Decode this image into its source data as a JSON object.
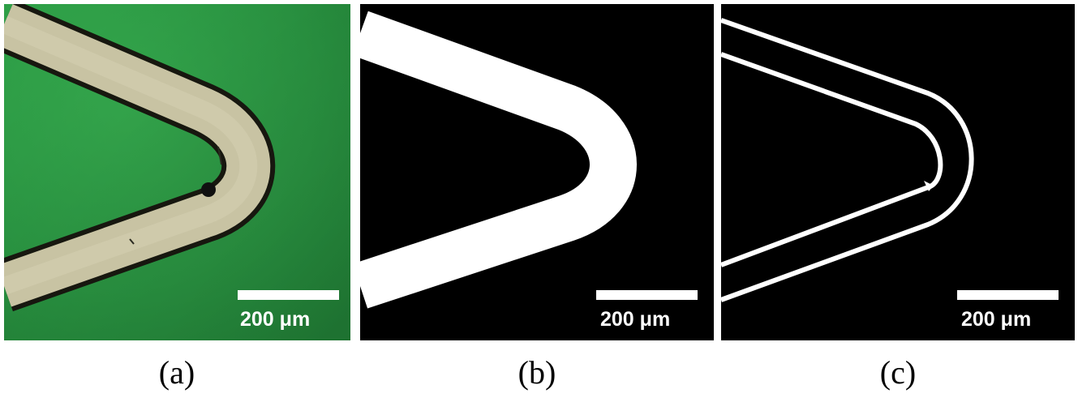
{
  "figure": {
    "panels": [
      {
        "caption": "(a)",
        "scale_bar_label": "200 μm",
        "image_kind": "optical micrograph",
        "colors": {
          "background": "#2fa447",
          "background_dark": "#237f35",
          "strip_fill": "#c7c2a0",
          "strip_edge": "#1a1a12"
        }
      },
      {
        "caption": "(b)",
        "scale_bar_label": "200 μm",
        "image_kind": "binary mask",
        "colors": {
          "background": "#000000",
          "strip_fill": "#ffffff"
        }
      },
      {
        "caption": "(c)",
        "scale_bar_label": "200 μm",
        "image_kind": "edge outline",
        "colors": {
          "background": "#000000",
          "outline": "#ffffff"
        }
      }
    ]
  }
}
